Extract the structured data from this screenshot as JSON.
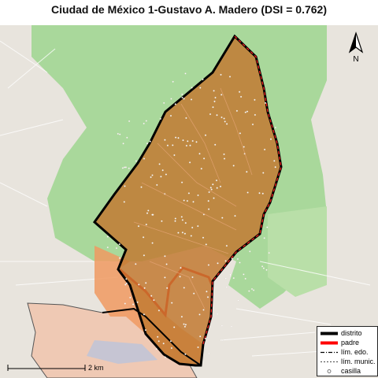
{
  "title": "Ciudad de México 1-Gustavo A. Madero (DSI = 0.762)",
  "north_label": "N",
  "scale_label": "2 km",
  "legend": {
    "items": [
      {
        "label": "distrito",
        "icon": "thick-black-line"
      },
      {
        "label": "padre",
        "icon": "thick-red-line"
      },
      {
        "label": "lím. edo.",
        "icon": "dash-dot-line"
      },
      {
        "label": "lím. munic.",
        "icon": "dashed-line"
      },
      {
        "label": "casilla",
        "icon": "small-circle"
      }
    ]
  },
  "colors": {
    "distrito_fill": "#c07a30",
    "padre_fill": "#e8905a",
    "distrito_border": "#000000",
    "padre_border": "#ff0000",
    "forest": "#a8d79a",
    "urban": "#e7e3dc"
  }
}
